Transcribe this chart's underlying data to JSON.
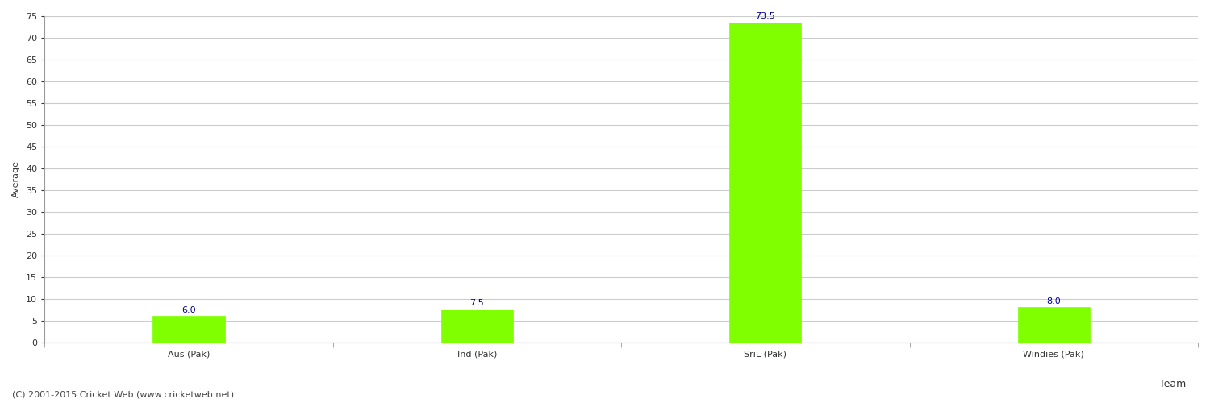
{
  "categories": [
    "Aus (Pak)",
    "Ind (Pak)",
    "SriL (Pak)",
    "Windies (Pak)"
  ],
  "values": [
    6.0,
    7.5,
    73.5,
    8.0
  ],
  "bar_color": "#7FFF00",
  "bar_edge_color": "#7FFF00",
  "value_color": "#00008B",
  "value_fontsize": 8,
  "xlabel": "Team",
  "ylabel": "Average",
  "ylim": [
    0,
    75
  ],
  "yticks": [
    0,
    5,
    10,
    15,
    20,
    25,
    30,
    35,
    40,
    45,
    50,
    55,
    60,
    65,
    70,
    75
  ],
  "grid_color": "#cccccc",
  "background_color": "#ffffff",
  "footer_text": "(C) 2001-2015 Cricket Web (www.cricketweb.net)",
  "footer_fontsize": 8,
  "footer_color": "#444444",
  "bar_width": 0.25,
  "xlabel_fontsize": 9,
  "ylabel_fontsize": 8,
  "tick_fontsize": 8,
  "spine_color": "#999999"
}
